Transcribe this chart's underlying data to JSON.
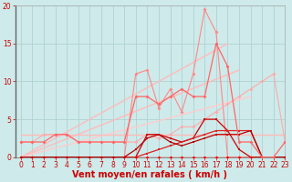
{
  "xlabel": "Vent moyen/en rafales ( km/h )",
  "xlim": [
    -0.5,
    23
  ],
  "ylim": [
    0,
    20
  ],
  "background_color": "#ceeaea",
  "grid_color": "#aacece",
  "lines": [
    {
      "x": [
        0,
        18
      ],
      "y": [
        0,
        15
      ],
      "color": "#ffbbbb",
      "lw": 1.0,
      "marker": null,
      "ms": 0,
      "alpha": 1.0
    },
    {
      "x": [
        0,
        19
      ],
      "y": [
        0,
        11.5
      ],
      "color": "#ffbbbb",
      "lw": 1.0,
      "marker": null,
      "ms": 0,
      "alpha": 1.0
    },
    {
      "x": [
        0,
        20
      ],
      "y": [
        0,
        8
      ],
      "color": "#ffcccc",
      "lw": 1.0,
      "marker": null,
      "ms": 0,
      "alpha": 1.0
    },
    {
      "x": [
        0,
        23
      ],
      "y": [
        3,
        3
      ],
      "color": "#ffbbbb",
      "lw": 1.0,
      "marker": null,
      "ms": 0,
      "alpha": 1.0
    },
    {
      "x": [
        0,
        1,
        2,
        3,
        4,
        5,
        6,
        7,
        8,
        9,
        10,
        11,
        12,
        13,
        14,
        15,
        16,
        17,
        18,
        19,
        20,
        21,
        22,
        23
      ],
      "y": [
        0,
        0,
        0,
        0,
        0,
        0,
        0,
        0,
        0,
        0,
        11,
        11.5,
        6.5,
        9,
        6,
        11,
        19.5,
        16.5,
        0,
        0,
        0,
        0,
        0,
        0
      ],
      "color": "#ff8888",
      "lw": 0.8,
      "marker": "D",
      "ms": 2.0,
      "alpha": 1.0
    },
    {
      "x": [
        0,
        1,
        2,
        3,
        4,
        5,
        6,
        7,
        8,
        9,
        10,
        11,
        12,
        13,
        14,
        15,
        16,
        17,
        18,
        19,
        20,
        21,
        22,
        23
      ],
      "y": [
        2,
        2,
        3,
        3,
        3,
        2,
        2,
        2,
        2,
        2,
        2,
        3,
        2.5,
        3,
        4,
        4,
        5,
        6,
        7,
        8,
        9,
        10,
        11,
        2
      ],
      "color": "#ffaaaa",
      "lw": 0.8,
      "marker": "D",
      "ms": 2.0,
      "alpha": 1.0
    },
    {
      "x": [
        0,
        1,
        2,
        3,
        4,
        5,
        6,
        7,
        8,
        9,
        10,
        11,
        12,
        13,
        14,
        15,
        16,
        17,
        18,
        19,
        20,
        21,
        22,
        23
      ],
      "y": [
        0,
        0,
        0,
        0,
        0,
        0,
        0,
        0,
        0,
        0,
        0,
        3,
        3,
        2.5,
        2,
        2.5,
        5,
        5,
        3.5,
        1,
        0,
        0,
        0,
        0
      ],
      "color": "#cc0000",
      "lw": 0.9,
      "marker": "s",
      "ms": 2.0,
      "alpha": 1.0
    },
    {
      "x": [
        0,
        1,
        2,
        3,
        4,
        5,
        6,
        7,
        8,
        9,
        10,
        11,
        12,
        13,
        14,
        15,
        16,
        17,
        18,
        19,
        20,
        21,
        22,
        23
      ],
      "y": [
        0,
        0,
        0,
        0,
        0,
        0,
        0,
        0,
        0,
        0,
        0,
        0.5,
        1,
        1.5,
        2,
        2.5,
        3,
        3.5,
        3.5,
        3.5,
        3.5,
        0,
        0,
        0
      ],
      "color": "#dd2222",
      "lw": 0.9,
      "marker": "s",
      "ms": 2.0,
      "alpha": 1.0
    },
    {
      "x": [
        0,
        1,
        2,
        3,
        4,
        5,
        6,
        7,
        8,
        9,
        10,
        11,
        12,
        13,
        14,
        15,
        16,
        17,
        18,
        19,
        20,
        21,
        22,
        23
      ],
      "y": [
        0,
        0,
        0,
        0,
        0,
        0,
        0,
        0,
        0,
        0,
        0,
        0,
        0,
        0,
        0,
        0,
        0,
        0,
        0,
        0,
        0,
        0,
        0,
        0
      ],
      "color": "#ff0000",
      "lw": 1.0,
      "marker": "D",
      "ms": 2.0,
      "alpha": 1.0
    },
    {
      "x": [
        0,
        1,
        2,
        3,
        4,
        5,
        6,
        7,
        8,
        9,
        10,
        11,
        12,
        13,
        14,
        15,
        16,
        17,
        18,
        19,
        20,
        21,
        22,
        23
      ],
      "y": [
        0,
        0,
        0,
        0,
        0,
        0,
        0,
        0,
        0,
        0,
        1,
        2.5,
        3,
        2,
        1.5,
        2,
        2.5,
        3,
        3,
        3,
        3.5,
        0,
        0,
        0
      ],
      "color": "#bb0000",
      "lw": 0.9,
      "marker": "s",
      "ms": 2.0,
      "alpha": 1.0
    },
    {
      "x": [
        0,
        1,
        2,
        3,
        4,
        5,
        6,
        7,
        8,
        9,
        10,
        11,
        12,
        13,
        14,
        15,
        16,
        17,
        18,
        19,
        20,
        21,
        22,
        23
      ],
      "y": [
        2,
        2,
        2,
        3,
        3,
        2,
        2,
        2,
        2,
        2,
        8,
        8,
        7,
        8,
        9,
        8,
        8,
        15,
        12,
        2,
        2,
        0,
        0,
        2
      ],
      "color": "#ff6666",
      "lw": 0.9,
      "marker": "D",
      "ms": 2.0,
      "alpha": 1.0
    }
  ],
  "xticks": [
    0,
    1,
    2,
    3,
    4,
    5,
    6,
    7,
    8,
    9,
    10,
    11,
    12,
    13,
    14,
    15,
    16,
    17,
    18,
    19,
    20,
    21,
    22,
    23
  ],
  "yticks": [
    0,
    5,
    10,
    15,
    20
  ],
  "tick_fontsize": 5.5,
  "label_fontsize": 7
}
